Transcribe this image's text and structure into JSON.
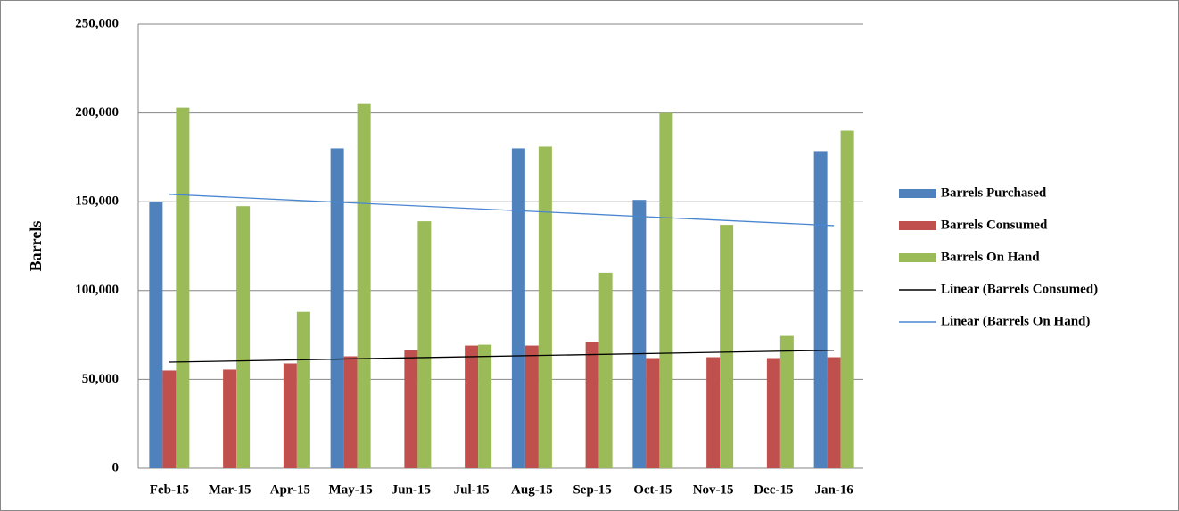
{
  "chart_data": {
    "type": "bar",
    "y_label": "Barrels",
    "categories": [
      "Feb-15",
      "Mar-15",
      "Apr-15",
      "May-15",
      "Jun-15",
      "Jul-15",
      "Aug-15",
      "Sep-15",
      "Oct-15",
      "Nov-15",
      "Dec-15",
      "Jan-16"
    ],
    "series": [
      {
        "name": "Barrels Purchased",
        "color": "#4f81bd",
        "values": [
          150000,
          0,
          0,
          180000,
          0,
          0,
          180000,
          0,
          151000,
          0,
          0,
          178500
        ]
      },
      {
        "name": "Barrels Consumed",
        "color": "#c0504d",
        "values": [
          55000,
          55500,
          59000,
          63000,
          66500,
          69000,
          69000,
          71000,
          62000,
          62500,
          62000,
          62500
        ]
      },
      {
        "name": "Barrels On Hand",
        "color": "#9bbb59",
        "values": [
          203000,
          147500,
          88000,
          205000,
          139000,
          69500,
          181000,
          110000,
          200000,
          137000,
          74500,
          190000
        ]
      }
    ],
    "trendlines": [
      {
        "name": "Linear (Barrels Consumed)",
        "color": "#000000",
        "source": 1
      },
      {
        "name": "Linear (Barrels On Hand)",
        "color": "#4a86d0",
        "source": 2
      }
    ],
    "ylim": [
      0,
      250000
    ],
    "yticks": [
      0,
      {
        "value": 50000,
        "label": "50,000"
      },
      {
        "value": 100000,
        "label": "100,000"
      },
      {
        "value": 150000,
        "label": "150,000"
      },
      {
        "value": 200000,
        "label": "200,000"
      },
      {
        "value": 250000,
        "label": "250,000"
      }
    ],
    "grid": true,
    "legend": "right"
  }
}
